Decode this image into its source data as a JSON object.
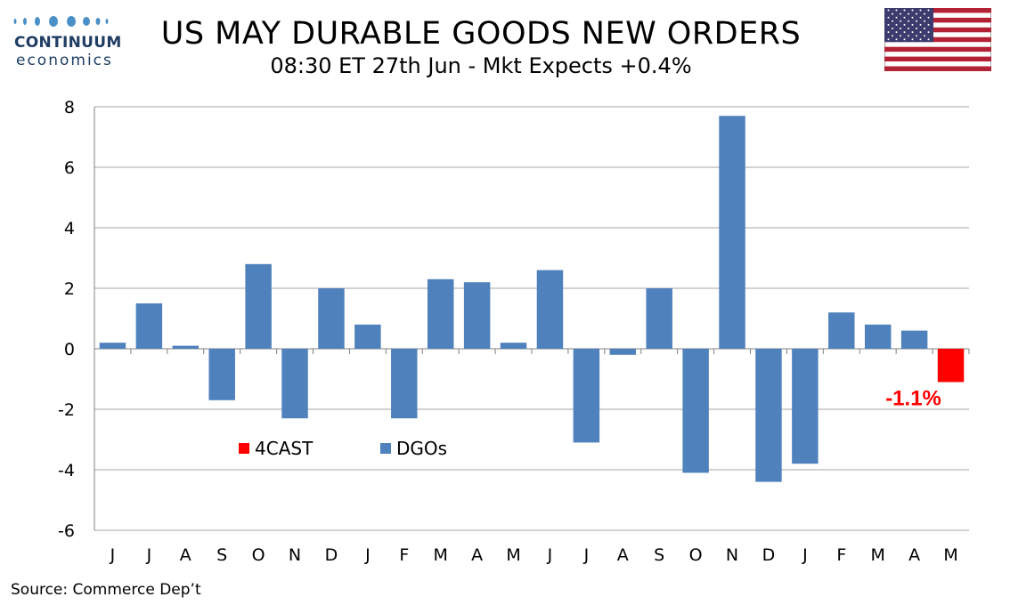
{
  "logo": {
    "name": "CONTINUUM",
    "sub": "economics"
  },
  "title": "US MAY DURABLE GOODS NEW ORDERS",
  "subtitle": "08:30 ET 27th Jun - Mkt Expects +0.4%",
  "source": "Source: Commerce Dep’t",
  "colors": {
    "dgos": "#4f81bd",
    "forecast": "#ff0000"
  },
  "chart_data": {
    "type": "bar",
    "categories": [
      "J",
      "J",
      "A",
      "S",
      "O",
      "N",
      "D",
      "J",
      "F",
      "M",
      "A",
      "M",
      "J",
      "J",
      "A",
      "S",
      "O",
      "N",
      "D",
      "J",
      "F",
      "M",
      "A",
      "M"
    ],
    "series": [
      {
        "name": "DGOs",
        "values": [
          0.2,
          1.5,
          0.1,
          -1.7,
          2.8,
          -2.3,
          2.0,
          0.8,
          -2.3,
          2.3,
          2.2,
          0.2,
          2.6,
          -3.1,
          -0.2,
          2.0,
          -4.1,
          7.7,
          -4.4,
          -3.8,
          1.2,
          0.8,
          0.6,
          null
        ]
      },
      {
        "name": "4CAST",
        "values": [
          null,
          null,
          null,
          null,
          null,
          null,
          null,
          null,
          null,
          null,
          null,
          null,
          null,
          null,
          null,
          null,
          null,
          null,
          null,
          null,
          null,
          null,
          null,
          -1.1
        ]
      }
    ],
    "annotation": "-1.1%",
    "ylim": [
      -6,
      8
    ],
    "yticks": [
      -6,
      -4,
      -2,
      0,
      2,
      4,
      6,
      8
    ],
    "grid": true,
    "legend": [
      "4CAST",
      "DGOs"
    ]
  }
}
